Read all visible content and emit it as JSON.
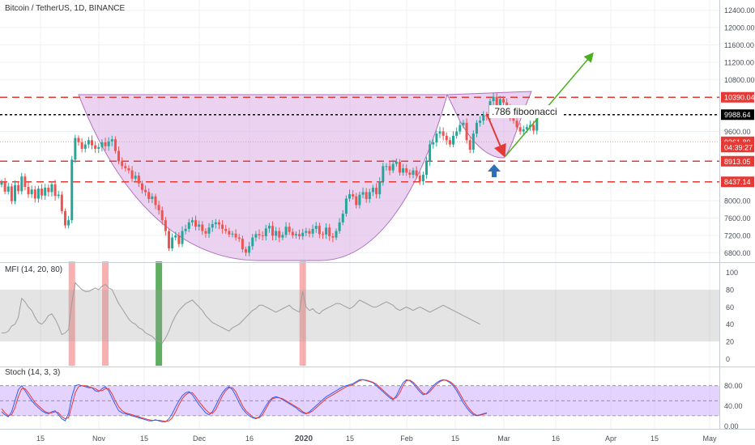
{
  "header": {
    "symbol_title": "Bitcoin / TetherUS, 1D, BINANCE"
  },
  "annotations": {
    "fib_label": ".786 fiboonacci"
  },
  "colors": {
    "bull": "#26a69a",
    "bear": "#ef5350",
    "cup_fill": "#dcb4e6",
    "resistance": "#e53935",
    "fib_line": "#000000",
    "mfi_line": "#9e9e9e",
    "stoch_k": "#2962ff",
    "stoch_d": "#e53935",
    "up_arrow": "#2f6fb5",
    "target_arrow": "#4caf20"
  },
  "chart_data": [
    {
      "type": "candlestick",
      "name": "price",
      "y_axis_ticks": [
        "12400.00",
        "12000.00",
        "11600.00",
        "11200.00",
        "10800.00",
        "10390.04",
        "9988.64",
        "9600.00",
        "9361.80",
        "04:39:27",
        "8913.05",
        "8437.14",
        "8000.00",
        "7600.00",
        "7200.00",
        "6800.00"
      ],
      "ylim": [
        6600,
        12600
      ],
      "price_tags": [
        {
          "label": "10390.04",
          "value": 10390,
          "style": "red"
        },
        {
          "label": "9988.64",
          "value": 9988,
          "style": "black"
        },
        {
          "label": "9361.80",
          "value": 9361,
          "style": "red"
        },
        {
          "label": "04:39:27",
          "value": 9240,
          "style": "red"
        },
        {
          "label": "8913.05",
          "value": 8913,
          "style": "red"
        },
        {
          "label": "8437.14",
          "value": 8437,
          "style": "red"
        }
      ],
      "x_axis_ticks": [
        "15",
        "Nov",
        "15",
        "Dec",
        "16",
        "2020",
        "15",
        "Feb",
        "15",
        "Mar",
        "16",
        "Apr",
        "15",
        "May"
      ],
      "horizontal_levels": [
        10390,
        9988,
        8913,
        8437
      ],
      "closes": [
        8430,
        8210,
        8330,
        7990,
        8360,
        8220,
        8560,
        8320,
        8150,
        8260,
        8050,
        8280,
        8120,
        8300,
        8200,
        8380,
        8110,
        8140,
        7760,
        7430,
        7550,
        8950,
        9450,
        9350,
        9200,
        9300,
        9400,
        9280,
        9200,
        9240,
        9350,
        9260,
        9370,
        9420,
        9150,
        8910,
        8800,
        8750,
        8700,
        8510,
        8580,
        8400,
        8250,
        8200,
        8040,
        8100,
        7900,
        7780,
        7550,
        7300,
        6900,
        7150,
        7200,
        7000,
        7300,
        7350,
        7500,
        7550,
        7400,
        7450,
        7300,
        7240,
        7380,
        7460,
        7500,
        7450,
        7350,
        7300,
        7220,
        7240,
        7150,
        7120,
        6880,
        6800,
        6950,
        7150,
        7230,
        7200,
        7180,
        7360,
        7420,
        7190,
        7300,
        7150,
        7210,
        7400,
        7280,
        7200,
        7230,
        7180,
        7260,
        7300,
        7240,
        7350,
        7420,
        7230,
        7220,
        7380,
        7180,
        7150,
        7300,
        7500,
        7700,
        8050,
        8150,
        8100,
        7900,
        8140,
        8200,
        8040,
        8200,
        8300,
        8150,
        8450,
        8800,
        8800,
        8700,
        8850,
        8900,
        8650,
        8750,
        8650,
        8600,
        8700,
        8580,
        8450,
        8600,
        8900,
        9300,
        9350,
        9550,
        9600,
        9500,
        9400,
        9300,
        9500,
        9600,
        9750,
        9800,
        9400,
        9180,
        9550,
        9800,
        9850,
        9980,
        9950,
        10300,
        10400,
        10200,
        10350,
        10270,
        10150,
        9900,
        9850,
        9700,
        9600,
        9650,
        9700,
        9750,
        9620,
        9900
      ]
    },
    {
      "type": "line",
      "name": "MFI (14, 20, 80)",
      "y_axis_ticks": [
        "100",
        "80",
        "60",
        "40",
        "20",
        "0"
      ],
      "ylim": [
        -8,
        110
      ],
      "band": [
        20,
        80
      ],
      "signal_bars": [
        {
          "candle": 21,
          "color": "red"
        },
        {
          "candle": 31,
          "color": "red"
        },
        {
          "candle": 47,
          "color": "green"
        },
        {
          "candle": 90,
          "color": "red"
        }
      ],
      "values": [
        30,
        30,
        32,
        38,
        40,
        48,
        70,
        66,
        60,
        56,
        48,
        42,
        40,
        44,
        50,
        52,
        46,
        38,
        28,
        30,
        34,
        65,
        88,
        84,
        80,
        78,
        78,
        80,
        82,
        80,
        84,
        86,
        82,
        80,
        72,
        64,
        58,
        52,
        46,
        42,
        40,
        36,
        34,
        30,
        28,
        26,
        22,
        20,
        18,
        24,
        32,
        42,
        50,
        56,
        60,
        64,
        66,
        68,
        64,
        60,
        56,
        50,
        46,
        42,
        40,
        38,
        36,
        34,
        32,
        36,
        38,
        40,
        44,
        48,
        52,
        56,
        58,
        62,
        62,
        60,
        58,
        56,
        54,
        56,
        58,
        60,
        62,
        58,
        56,
        54,
        78,
        60,
        56,
        58,
        54,
        52,
        56,
        58,
        60,
        62,
        64,
        64,
        62,
        60,
        58,
        60,
        64,
        68,
        66,
        64,
        62,
        60,
        60,
        62,
        64,
        66,
        64,
        62,
        58,
        56,
        58,
        60,
        58,
        56,
        58,
        60,
        58,
        56,
        54,
        56,
        58,
        60,
        62,
        60,
        58,
        56,
        54,
        52,
        50,
        48,
        46,
        44,
        42,
        40
      ]
    },
    {
      "type": "line",
      "name": "Stoch (14, 3, 3)",
      "y_axis_ticks": [
        "80.00",
        "40.00",
        "0.00"
      ],
      "ylim": [
        -6,
        115
      ],
      "band": [
        20,
        80
      ],
      "k": [
        28,
        22,
        18,
        28,
        50,
        72,
        80,
        70,
        60,
        50,
        42,
        36,
        30,
        26,
        24,
        28,
        30,
        22,
        14,
        10,
        25,
        58,
        80,
        82,
        80,
        78,
        76,
        76,
        70,
        68,
        74,
        78,
        70,
        56,
        42,
        30,
        26,
        24,
        22,
        20,
        18,
        16,
        14,
        12,
        10,
        10,
        12,
        10,
        8,
        8,
        14,
        24,
        38,
        50,
        60,
        66,
        68,
        62,
        52,
        42,
        34,
        26,
        22,
        28,
        40,
        54,
        66,
        74,
        78,
        72,
        60,
        46,
        34,
        26,
        20,
        16,
        14,
        18,
        28,
        40,
        50,
        56,
        58,
        56,
        52,
        48,
        44,
        40,
        36,
        30,
        26,
        24,
        28,
        34,
        40,
        46,
        52,
        58,
        62,
        66,
        70,
        74,
        78,
        80,
        82,
        84,
        88,
        92,
        92,
        90,
        88,
        86,
        80,
        74,
        68,
        62,
        56,
        52,
        60,
        74,
        86,
        92,
        90,
        84,
        76,
        68,
        62,
        64,
        72,
        80,
        86,
        90,
        92,
        90,
        86,
        80,
        70,
        58,
        46,
        36,
        28,
        22,
        20,
        22,
        24,
        26
      ],
      "d": [
        34,
        26,
        20,
        22,
        36,
        58,
        74,
        74,
        66,
        56,
        46,
        40,
        34,
        28,
        26,
        26,
        28,
        26,
        18,
        14,
        16,
        40,
        66,
        78,
        80,
        80,
        78,
        76,
        74,
        70,
        70,
        74,
        74,
        64,
        50,
        38,
        30,
        26,
        24,
        22,
        20,
        18,
        16,
        14,
        12,
        11,
        11,
        11,
        10,
        9,
        10,
        16,
        28,
        42,
        54,
        62,
        66,
        66,
        58,
        48,
        40,
        32,
        26,
        25,
        32,
        46,
        60,
        70,
        76,
        76,
        68,
        54,
        40,
        30,
        24,
        18,
        16,
        16,
        22,
        34,
        46,
        54,
        56,
        56,
        54,
        50,
        46,
        42,
        38,
        34,
        28,
        25,
        26,
        30,
        36,
        42,
        48,
        54,
        58,
        62,
        66,
        70,
        74,
        78,
        80,
        82,
        86,
        90,
        92,
        91,
        89,
        87,
        83,
        77,
        71,
        65,
        59,
        54,
        56,
        66,
        80,
        90,
        91,
        87,
        80,
        72,
        65,
        63,
        68,
        76,
        83,
        88,
        91,
        91,
        88,
        83,
        75,
        64,
        52,
        41,
        32,
        25,
        21,
        21,
        23,
        25
      ]
    }
  ]
}
